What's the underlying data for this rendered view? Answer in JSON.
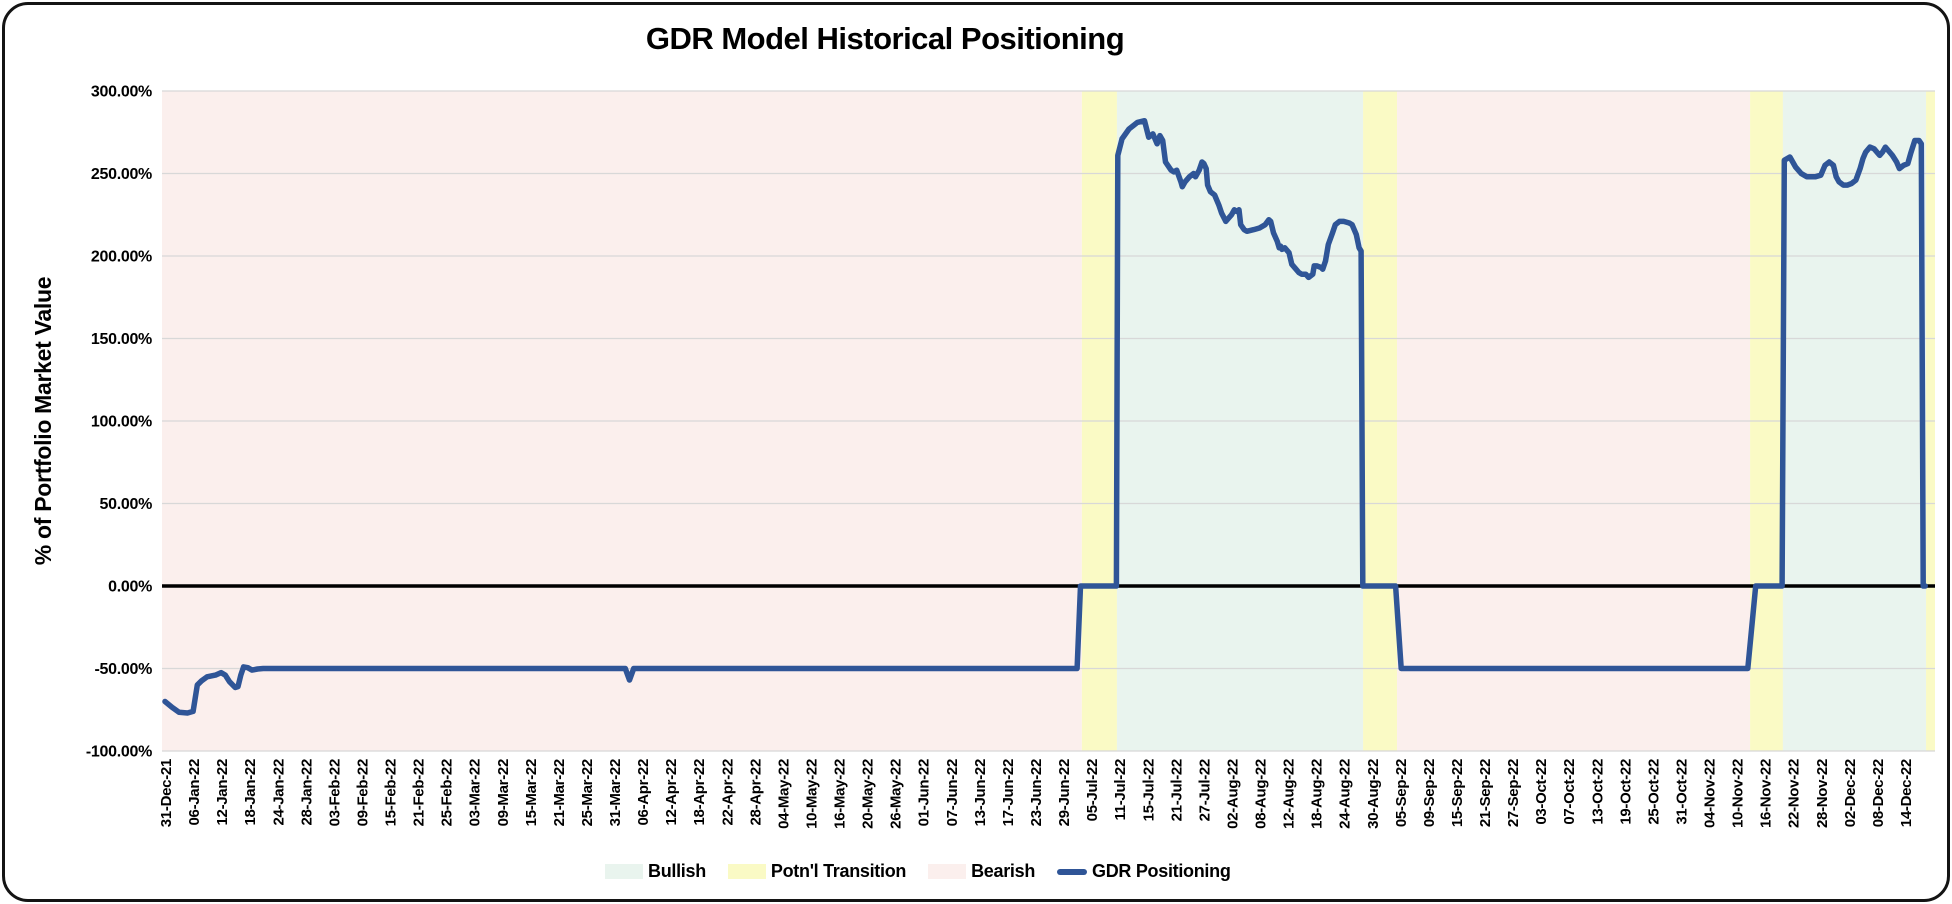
{
  "chart_data": {
    "type": "line",
    "title": "GDR Model Historical Positioning",
    "ylabel": "% of Portfolio Market Value",
    "ylim": [
      -100,
      300
    ],
    "grid": true,
    "zero_line": true,
    "legend_position": "bottom",
    "y_ticks": [
      {
        "label": "300.00%",
        "value": 300
      },
      {
        "label": "250.00%",
        "value": 250
      },
      {
        "label": "200.00%",
        "value": 200
      },
      {
        "label": "150.00%",
        "value": 150
      },
      {
        "label": "100.00%",
        "value": 100
      },
      {
        "label": "50.00%",
        "value": 50
      },
      {
        "label": "0.00%",
        "value": 0
      },
      {
        "label": "-50.00%",
        "value": -50
      },
      {
        "label": "-100.00%",
        "value": -100
      }
    ],
    "x_tick_labels": [
      "31-Dec-21",
      "06-Jan-22",
      "12-Jan-22",
      "18-Jan-22",
      "24-Jan-22",
      "28-Jan-22",
      "03-Feb-22",
      "09-Feb-22",
      "15-Feb-22",
      "21-Feb-22",
      "25-Feb-22",
      "03-Mar-22",
      "09-Mar-22",
      "15-Mar-22",
      "21-Mar-22",
      "25-Mar-22",
      "31-Mar-22",
      "06-Apr-22",
      "12-Apr-22",
      "18-Apr-22",
      "22-Apr-22",
      "28-Apr-22",
      "04-May-22",
      "10-May-22",
      "16-May-22",
      "20-May-22",
      "26-May-22",
      "01-Jun-22",
      "07-Jun-22",
      "13-Jun-22",
      "17-Jun-22",
      "23-Jun-22",
      "29-Jun-22",
      "05-Jul-22",
      "11-Jul-22",
      "15-Jul-22",
      "21-Jul-22",
      "27-Jul-22",
      "02-Aug-22",
      "08-Aug-22",
      "12-Aug-22",
      "18-Aug-22",
      "24-Aug-22",
      "30-Aug-22",
      "05-Sep-22",
      "09-Sep-22",
      "15-Sep-22",
      "21-Sep-22",
      "27-Sep-22",
      "03-Oct-22",
      "07-Oct-22",
      "13-Oct-22",
      "19-Oct-22",
      "25-Oct-22",
      "31-Oct-22",
      "04-Nov-22",
      "10-Nov-22",
      "16-Nov-22",
      "22-Nov-22",
      "28-Nov-22",
      "02-Dec-22",
      "08-Dec-22",
      "14-Dec-22"
    ],
    "band_colors": {
      "bullish": "#e9f4ee",
      "transition": "#fafac5",
      "bearish": "#fbefed"
    },
    "regions": [
      {
        "band": "bearish",
        "from_tick": -0.11,
        "to_tick": 32.67
      },
      {
        "band": "transition",
        "from_tick": 32.67,
        "to_tick": 33.92
      },
      {
        "band": "bullish",
        "from_tick": 33.92,
        "to_tick": 42.69
      },
      {
        "band": "transition",
        "from_tick": 42.69,
        "to_tick": 43.9
      },
      {
        "band": "bearish",
        "from_tick": 43.9,
        "to_tick": 56.48
      },
      {
        "band": "transition",
        "from_tick": 56.48,
        "to_tick": 57.65
      },
      {
        "band": "bullish",
        "from_tick": 57.65,
        "to_tick": 62.75
      },
      {
        "band": "transition",
        "from_tick": 62.75,
        "to_tick": 63.08
      }
    ],
    "series": [
      {
        "name": "GDR Positioning",
        "color": "#2f5597",
        "points": [
          [
            0,
            -70
          ],
          [
            0.25,
            -73.5
          ],
          [
            0.5,
            -76.5
          ],
          [
            0.8,
            -77
          ],
          [
            1.0,
            -76
          ],
          [
            1.15,
            -60
          ],
          [
            1.3,
            -57.5
          ],
          [
            1.5,
            -55
          ],
          [
            1.8,
            -54
          ],
          [
            2.0,
            -52.5
          ],
          [
            2.15,
            -54
          ],
          [
            2.3,
            -58
          ],
          [
            2.5,
            -61.5
          ],
          [
            2.6,
            -61
          ],
          [
            2.7,
            -54
          ],
          [
            2.8,
            -49
          ],
          [
            2.95,
            -49.5
          ],
          [
            3.1,
            -51
          ],
          [
            3.3,
            -50.3
          ],
          [
            3.5,
            -50
          ],
          [
            16.4,
            -50
          ],
          [
            16.55,
            -57
          ],
          [
            16.7,
            -50
          ],
          [
            32.5,
            -50
          ],
          [
            32.62,
            0
          ],
          [
            33.9,
            0
          ],
          [
            33.95,
            261
          ],
          [
            34.1,
            271
          ],
          [
            34.35,
            277
          ],
          [
            34.65,
            281
          ],
          [
            34.9,
            282
          ],
          [
            35.05,
            272
          ],
          [
            35.2,
            274
          ],
          [
            35.35,
            268
          ],
          [
            35.45,
            273
          ],
          [
            35.55,
            270
          ],
          [
            35.65,
            257
          ],
          [
            35.85,
            252
          ],
          [
            35.95,
            251
          ],
          [
            36.05,
            252
          ],
          [
            36.2,
            245
          ],
          [
            36.25,
            242
          ],
          [
            36.35,
            245
          ],
          [
            36.5,
            248
          ],
          [
            36.65,
            250
          ],
          [
            36.72,
            248
          ],
          [
            36.85,
            252
          ],
          [
            36.95,
            257
          ],
          [
            37.02,
            256
          ],
          [
            37.1,
            253
          ],
          [
            37.15,
            243
          ],
          [
            37.25,
            239
          ],
          [
            37.4,
            237
          ],
          [
            37.55,
            231
          ],
          [
            37.65,
            226
          ],
          [
            37.8,
            221
          ],
          [
            37.9,
            223
          ],
          [
            38.0,
            225
          ],
          [
            38.1,
            228
          ],
          [
            38.2,
            227
          ],
          [
            38.27,
            228
          ],
          [
            38.33,
            219
          ],
          [
            38.45,
            216
          ],
          [
            38.55,
            215
          ],
          [
            38.8,
            216
          ],
          [
            39.0,
            217
          ],
          [
            39.2,
            219
          ],
          [
            39.33,
            222
          ],
          [
            39.4,
            221
          ],
          [
            39.5,
            214
          ],
          [
            39.63,
            209
          ],
          [
            39.7,
            205
          ],
          [
            39.75,
            206
          ],
          [
            39.8,
            204
          ],
          [
            39.9,
            205
          ],
          [
            40.05,
            202
          ],
          [
            40.15,
            195
          ],
          [
            40.3,
            192
          ],
          [
            40.4,
            190
          ],
          [
            40.5,
            189
          ],
          [
            40.65,
            189
          ],
          [
            40.75,
            187
          ],
          [
            40.9,
            189
          ],
          [
            40.95,
            194
          ],
          [
            41.05,
            194
          ],
          [
            41.2,
            193
          ],
          [
            41.25,
            192
          ],
          [
            41.35,
            197
          ],
          [
            41.45,
            207
          ],
          [
            41.6,
            214
          ],
          [
            41.7,
            219
          ],
          [
            41.85,
            221
          ],
          [
            42.0,
            221
          ],
          [
            42.2,
            220
          ],
          [
            42.3,
            219
          ],
          [
            42.45,
            213
          ],
          [
            42.55,
            205
          ],
          [
            42.62,
            203
          ],
          [
            42.68,
            0
          ],
          [
            43.85,
            0
          ],
          [
            44.05,
            -50
          ],
          [
            56.4,
            -50
          ],
          [
            56.68,
            0
          ],
          [
            57.62,
            0
          ],
          [
            57.7,
            258
          ],
          [
            57.9,
            260
          ],
          [
            58.1,
            254
          ],
          [
            58.3,
            250
          ],
          [
            58.5,
            248
          ],
          [
            58.8,
            248
          ],
          [
            59.0,
            249
          ],
          [
            59.15,
            255
          ],
          [
            59.3,
            257
          ],
          [
            59.45,
            255
          ],
          [
            59.55,
            248
          ],
          [
            59.65,
            245
          ],
          [
            59.8,
            243
          ],
          [
            59.95,
            243
          ],
          [
            60.1,
            244
          ],
          [
            60.25,
            246
          ],
          [
            60.4,
            253
          ],
          [
            60.5,
            259
          ],
          [
            60.6,
            263
          ],
          [
            60.75,
            266
          ],
          [
            60.9,
            265
          ],
          [
            61.0,
            263
          ],
          [
            61.1,
            261
          ],
          [
            61.2,
            263
          ],
          [
            61.3,
            266
          ],
          [
            61.4,
            264
          ],
          [
            61.55,
            261
          ],
          [
            61.7,
            257
          ],
          [
            61.8,
            253
          ],
          [
            61.95,
            255
          ],
          [
            62.1,
            256
          ],
          [
            62.2,
            262
          ],
          [
            62.35,
            270
          ],
          [
            62.5,
            270
          ],
          [
            62.58,
            268
          ],
          [
            62.65,
            0
          ],
          [
            62.72,
            0
          ]
        ]
      }
    ],
    "legend": [
      {
        "label": "Bullish",
        "swatch": "area",
        "color": "#e9f4ee"
      },
      {
        "label": "Potn'l Transition",
        "swatch": "area",
        "color": "#fafac5"
      },
      {
        "label": "Bearish",
        "swatch": "area",
        "color": "#fbefed"
      },
      {
        "label": "GDR Positioning",
        "swatch": "line",
        "color": "#2f5597"
      }
    ]
  },
  "colors": {
    "gridline": "#d8d8d8",
    "zero_line": "#000000",
    "card_border": "#141414",
    "text": "#000000"
  }
}
